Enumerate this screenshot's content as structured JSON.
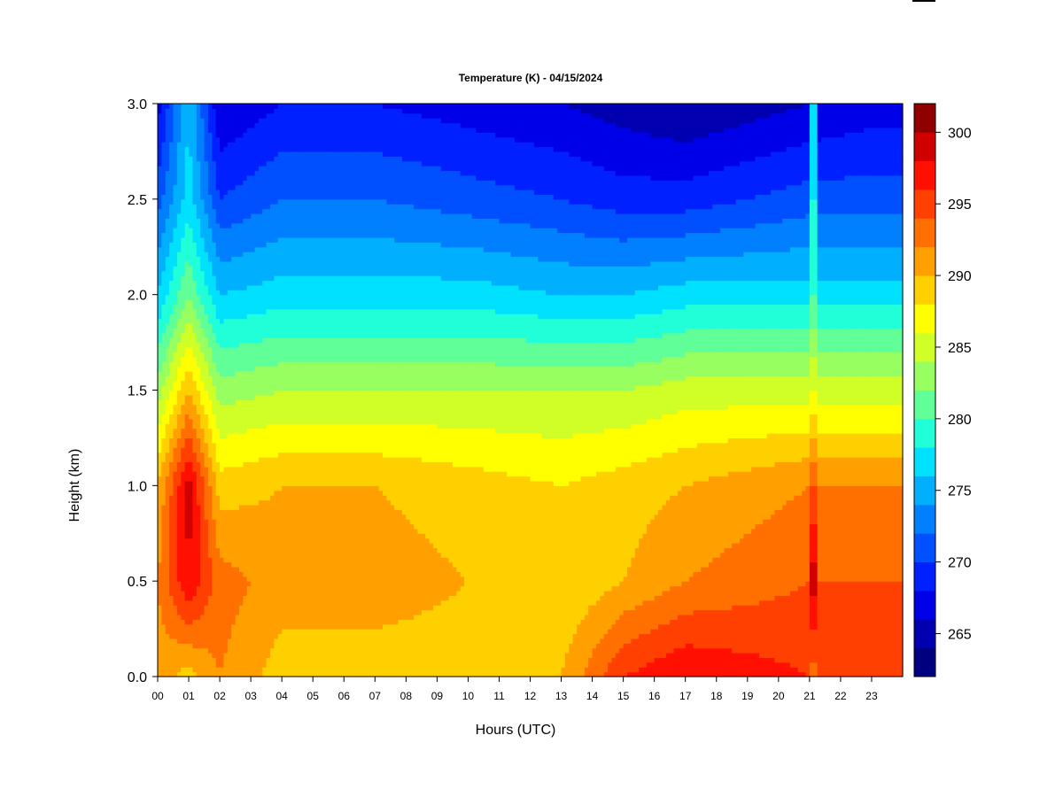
{
  "chart_data": {
    "type": "heatmap",
    "title": "Temperature (K) - 04/15/2024",
    "xlabel": "Hours (UTC)",
    "ylabel": "Height (km)",
    "x_ticks": [
      "00",
      "01",
      "02",
      "03",
      "04",
      "05",
      "06",
      "07",
      "08",
      "09",
      "10",
      "11",
      "12",
      "13",
      "14",
      "15",
      "16",
      "17",
      "18",
      "19",
      "20",
      "21",
      "22",
      "23"
    ],
    "y_ticks": [
      "0.0",
      "0.5",
      "1.0",
      "1.5",
      "2.0",
      "2.5",
      "3.0"
    ],
    "xlim": [
      0,
      24
    ],
    "ylim": [
      0,
      3.0
    ],
    "colorbar": {
      "label_ticks": [
        "265",
        "270",
        "275",
        "280",
        "285",
        "290",
        "295",
        "300"
      ],
      "levels": [
        262,
        264,
        266,
        268,
        270,
        272,
        274,
        276,
        278,
        280,
        282,
        284,
        286,
        288,
        290,
        292,
        294,
        296,
        298,
        300,
        302
      ],
      "colors": [
        "#000080",
        "#0000B0",
        "#0000E8",
        "#0020FF",
        "#0050FF",
        "#0080FF",
        "#00B0FF",
        "#00E0FF",
        "#20FFD8",
        "#60FF98",
        "#98FF60",
        "#D0FF28",
        "#FFFF00",
        "#FFD000",
        "#FFA000",
        "#FF7000",
        "#FF4000",
        "#FF1000",
        "#D00000",
        "#900000"
      ]
    },
    "profiles": [
      {
        "hour": 0,
        "h": [
          0,
          0.5,
          1.0,
          1.5,
          2.0,
          2.5,
          3.0
        ],
        "T": [
          291,
          292,
          290,
          283,
          276,
          271,
          267
        ]
      },
      {
        "hour": 1,
        "h": [
          0,
          0.5,
          1.0,
          1.5,
          2.0,
          2.5,
          3.0
        ],
        "T": [
          289,
          298,
          299,
          290,
          282,
          277,
          276
        ]
      },
      {
        "hour": 2,
        "h": [
          0,
          0.5,
          1.0,
          1.5,
          2.0,
          2.5,
          3.0
        ],
        "T": [
          292,
          293,
          289,
          283,
          276,
          270,
          266
        ]
      },
      {
        "hour": 4,
        "h": [
          0,
          0.5,
          1.0,
          1.5,
          2.0,
          2.5,
          3.0
        ],
        "T": [
          289,
          291,
          290,
          284,
          277,
          272,
          268
        ]
      },
      {
        "hour": 7,
        "h": [
          0,
          0.5,
          1.0,
          1.5,
          2.0,
          2.5,
          3.0
        ],
        "T": [
          289,
          291,
          290,
          284,
          277,
          272,
          268
        ]
      },
      {
        "hour": 10,
        "h": [
          0,
          0.5,
          1.0,
          1.5,
          2.0,
          2.5,
          3.0
        ],
        "T": [
          289,
          290,
          289,
          284,
          277,
          271,
          267
        ]
      },
      {
        "hour": 13,
        "h": [
          0,
          0.5,
          1.0,
          1.5,
          2.0,
          2.5,
          3.0
        ],
        "T": [
          290,
          288,
          288,
          284,
          276,
          270,
          266
        ]
      },
      {
        "hour": 15,
        "h": [
          0,
          0.5,
          1.0,
          1.5,
          2.0,
          2.5,
          3.0
        ],
        "T": [
          296,
          290,
          289,
          284,
          276,
          269,
          265
        ]
      },
      {
        "hour": 17,
        "h": [
          0,
          0.5,
          1.0,
          1.5,
          2.0,
          2.5,
          3.0
        ],
        "T": [
          298,
          292,
          290,
          285,
          277,
          269,
          264
        ]
      },
      {
        "hour": 19,
        "h": [
          0,
          0.5,
          1.0,
          1.5,
          2.0,
          2.5,
          3.0
        ],
        "T": [
          297,
          293,
          291,
          285,
          277,
          270,
          265
        ]
      },
      {
        "hour": 21,
        "h": [
          0,
          0.5,
          1.0,
          1.5,
          2.0,
          2.5,
          3.0
        ],
        "T": [
          296,
          294,
          292,
          285,
          277,
          271,
          266
        ]
      },
      {
        "hour": 23,
        "h": [
          0,
          0.5,
          1.0,
          1.5,
          2.0,
          2.5,
          3.0
        ],
        "T": [
          296,
          294,
          292,
          285,
          277,
          271,
          267
        ]
      }
    ],
    "spike_hour": 21.1,
    "spike_profile": {
      "h": [
        0,
        0.5,
        1.0,
        1.5,
        2.0,
        2.5,
        3.0
      ],
      "T": [
        293,
        299,
        294,
        286,
        280,
        278,
        277
      ]
    },
    "grid": false,
    "legend": "colorbar-right"
  }
}
